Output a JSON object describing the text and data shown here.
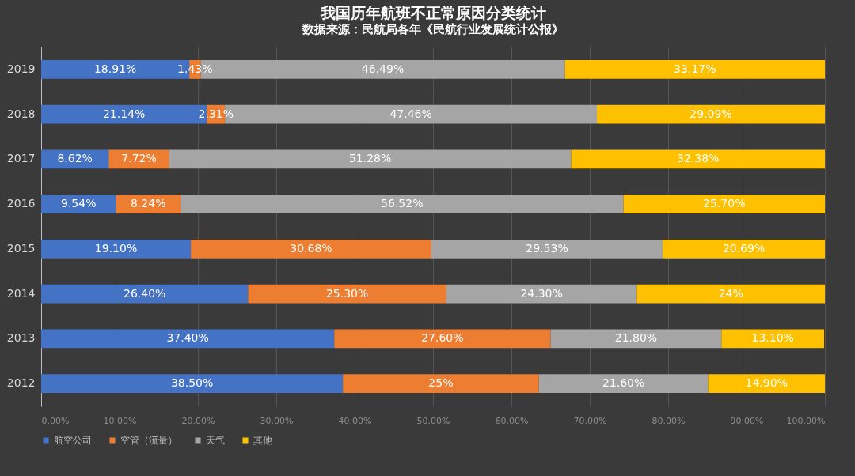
{
  "chart_data": {
    "type": "bar",
    "title": "我国历年航班不正常原因分类统计",
    "subtitle": "数据来源：民航局各年《民航行业发展统计公报》",
    "orientation": "horizontal",
    "stacked": true,
    "categories": [
      "2019",
      "2018",
      "2017",
      "2016",
      "2015",
      "2014",
      "2013",
      "2012"
    ],
    "series": [
      {
        "name": "航空公司",
        "color": "#4472c4",
        "values": [
          18.91,
          21.14,
          8.62,
          9.54,
          19.1,
          26.4,
          37.4,
          38.5
        ],
        "value_labels": [
          "18.91%",
          "21.14%",
          "8.62%",
          "9.54%",
          "19.10%",
          "26.40%",
          "37.40%",
          "38.50%"
        ]
      },
      {
        "name": "空管（流量）",
        "color": "#ed7d31",
        "values": [
          1.43,
          2.31,
          7.72,
          8.24,
          30.68,
          25.3,
          27.6,
          25
        ],
        "value_labels": [
          "1.43%",
          "2.31%",
          "7.72%",
          "8.24%",
          "30.68%",
          "25.30%",
          "27.60%",
          "25%"
        ]
      },
      {
        "name": "天气",
        "color": "#a5a5a5",
        "values": [
          46.49,
          47.46,
          51.28,
          56.52,
          29.53,
          24.3,
          21.8,
          21.6
        ],
        "value_labels": [
          "46.49%",
          "47.46%",
          "51.28%",
          "56.52%",
          "29.53%",
          "24.30%",
          "21.80%",
          "21.60%"
        ]
      },
      {
        "name": "其他",
        "color": "#ffc000",
        "values": [
          33.17,
          29.09,
          32.38,
          25.7,
          20.69,
          24,
          13.1,
          14.9
        ],
        "value_labels": [
          "33.17%",
          "29.09%",
          "32.38%",
          "25.70%",
          "20.69%",
          "24%",
          "13.10%",
          "14.90%"
        ]
      }
    ],
    "xlim": [
      0,
      100
    ],
    "xticks": [
      {
        "value": 0,
        "label": "0.00%"
      },
      {
        "value": 10,
        "label": "10.00%"
      },
      {
        "value": 20,
        "label": "20.00%"
      },
      {
        "value": 30,
        "label": "30.00%"
      },
      {
        "value": 40,
        "label": "40.00%"
      },
      {
        "value": 50,
        "label": "50.00%"
      },
      {
        "value": 60,
        "label": "60.00%"
      },
      {
        "value": 70,
        "label": "70.00%"
      },
      {
        "value": 80,
        "label": "80.00%"
      },
      {
        "value": 90,
        "label": "90.00%"
      },
      {
        "value": 100,
        "label": "100.00%"
      }
    ],
    "grid": "x",
    "legend": "bottom"
  }
}
